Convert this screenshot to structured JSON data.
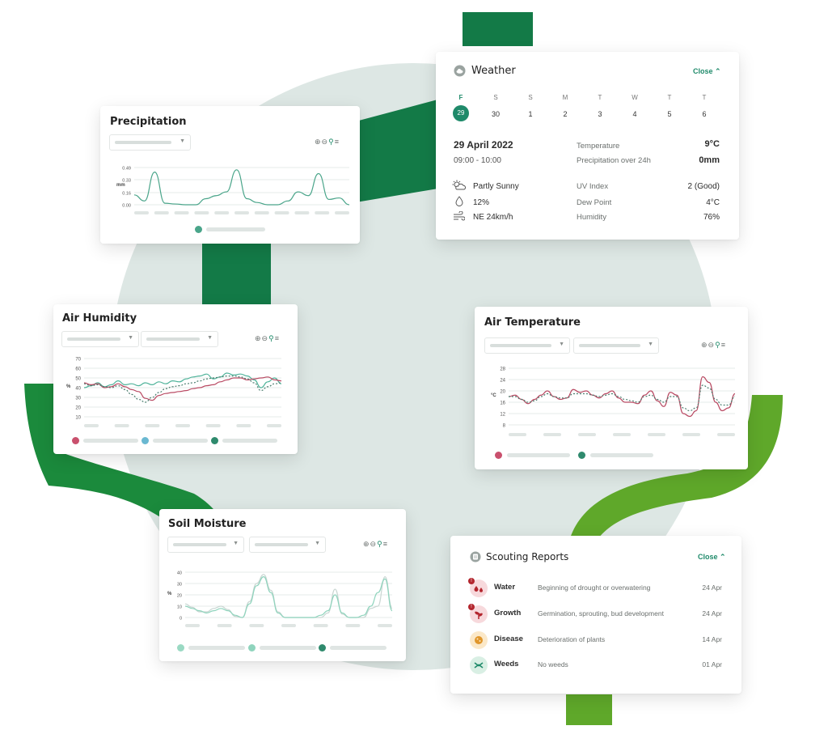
{
  "weather": {
    "title": "Weather",
    "close_label": "Close",
    "days": [
      {
        "letter": "F",
        "num": "29"
      },
      {
        "letter": "S",
        "num": "30"
      },
      {
        "letter": "S",
        "num": "1"
      },
      {
        "letter": "M",
        "num": "2"
      },
      {
        "letter": "T",
        "num": "3"
      },
      {
        "letter": "W",
        "num": "4"
      },
      {
        "letter": "T",
        "num": "5"
      },
      {
        "letter": "T",
        "num": "6"
      }
    ],
    "date": "29 April 2022",
    "time_range": "09:00 - 10:00",
    "temperature_label": "Temperature",
    "temperature_value": "9°C",
    "precip_label": "Precipitation over 24h",
    "precip_value": "0mm",
    "condition": "Partly Sunny",
    "humidity_pct": "12%",
    "wind": "NE 24km/h",
    "uv_label": "UV Index",
    "uv_value": "2 (Good)",
    "dew_label": "Dew Point",
    "dew_value": "4°C",
    "humidity_label": "Humidity",
    "humidity_value": "76%",
    "icons": {
      "header": "cloud-icon",
      "condition": "partly-sunny-icon",
      "humidity": "drop-icon",
      "wind": "wind-icon"
    }
  },
  "precipitation": {
    "title": "Precipitation",
    "ylabel": "mm",
    "yticks": [
      "0.49",
      "0.33",
      "0.16",
      "0.00"
    ],
    "chart_data": {
      "type": "line",
      "title": "Precipitation",
      "ylabel": "mm",
      "ylim": [
        0,
        0.49
      ],
      "series": [
        {
          "color": "#4aa58a",
          "values": [
            0.13,
            0.05,
            0.43,
            0.02,
            0.01,
            0.0,
            0.0,
            0.08,
            0.12,
            0.17,
            0.46,
            0.08,
            0.03,
            0.0,
            0.0,
            0.05,
            0.17,
            0.12,
            0.41,
            0.07,
            0.09,
            0.0
          ]
        }
      ]
    }
  },
  "air_humidity": {
    "title": "Air Humidity",
    "ylabel": "%",
    "yticks": [
      "70",
      "60",
      "50",
      "40",
      "30",
      "20",
      "10"
    ],
    "chart_data": {
      "type": "line",
      "title": "Air Humidity",
      "ylabel": "%",
      "ylim": [
        10,
        70
      ],
      "series": [
        {
          "color": "#4fb39a",
          "values": [
            40,
            42,
            45,
            41,
            43,
            47,
            43,
            44,
            42,
            45,
            43,
            46,
            44,
            47,
            46,
            49,
            51,
            52,
            54,
            49,
            51,
            55,
            53,
            54,
            52,
            48,
            40,
            46,
            50,
            44
          ]
        },
        {
          "color": "#b94a63",
          "values": [
            45,
            43,
            44,
            40,
            41,
            44,
            41,
            38,
            36,
            29,
            27,
            32,
            34,
            35,
            36,
            37,
            39,
            40,
            42,
            43,
            46,
            48,
            50,
            50,
            48,
            49,
            50,
            51,
            48,
            47
          ]
        },
        {
          "color": "#4a7d6e",
          "dashed": true,
          "values": [
            44,
            42,
            43,
            41,
            40,
            42,
            38,
            33,
            28,
            25,
            30,
            35,
            39,
            41,
            42,
            44,
            45,
            47,
            49,
            50,
            51,
            52,
            52,
            51,
            49,
            45,
            37,
            41,
            44,
            45
          ]
        }
      ]
    }
  },
  "air_temperature": {
    "title": "Air Temperature",
    "ylabel": "°C",
    "yticks": [
      "28",
      "24",
      "20",
      "16",
      "12",
      "8"
    ],
    "chart_data": {
      "type": "line",
      "title": "Air Temperature",
      "ylabel": "°C",
      "ylim": [
        8,
        28
      ],
      "series": [
        {
          "color": "#b94a63",
          "values": [
            18,
            18.5,
            17,
            15.5,
            17,
            18.5,
            20,
            18,
            17,
            17.5,
            20.5,
            19.5,
            20,
            18.5,
            17.5,
            19,
            20,
            17.5,
            16,
            16,
            15.5,
            18.5,
            20,
            16.5,
            14.5,
            19.5,
            18.5,
            12,
            11,
            13,
            25,
            23,
            16,
            13,
            14,
            19
          ]
        },
        {
          "color": "#4a7d6e",
          "dashed": true,
          "values": [
            18,
            18,
            17,
            16,
            16.5,
            18,
            19,
            18,
            17.5,
            17.5,
            19,
            19,
            19,
            18.5,
            18,
            18.5,
            19,
            18,
            17,
            16.5,
            16,
            18,
            18.5,
            17,
            16,
            18,
            18,
            14,
            13,
            14,
            22,
            21,
            17,
            15,
            15,
            18
          ]
        }
      ]
    }
  },
  "soil_moisture": {
    "title": "Soil Moisture",
    "ylabel": "%",
    "yticks": [
      "40",
      "30",
      "20",
      "10",
      "0"
    ],
    "chart_data": {
      "type": "line",
      "title": "Soil Moisture",
      "ylabel": "%",
      "ylim": [
        0,
        40
      ],
      "series": [
        {
          "color": "#c9d6d2",
          "values": [
            12,
            9,
            5,
            5,
            8,
            10,
            7,
            1,
            0,
            14,
            30,
            38,
            24,
            5,
            0,
            0,
            0,
            0,
            0,
            0,
            4,
            25,
            3,
            0,
            0,
            0,
            8,
            10,
            36,
            8
          ]
        },
        {
          "color": "#8fd4bd",
          "values": [
            10,
            8,
            6,
            4,
            6,
            8,
            6,
            2,
            0,
            12,
            28,
            36,
            22,
            4,
            0,
            0,
            0,
            0,
            0,
            2,
            6,
            20,
            4,
            0,
            0,
            2,
            10,
            22,
            34,
            6
          ]
        }
      ]
    }
  },
  "scouting": {
    "title": "Scouting Reports",
    "close_label": "Close",
    "rows": [
      {
        "name": "Water",
        "desc": "Beginning of drought or overwatering",
        "date": "24 Apr",
        "badge": "!",
        "icon": "water-drops-icon"
      },
      {
        "name": "Growth",
        "desc": "Germination, sprouting, bud development",
        "date": "24 Apr",
        "badge": "!",
        "icon": "sprout-icon"
      },
      {
        "name": "Disease",
        "desc": "Deterioration of plants",
        "date": "14 Apr",
        "badge": "",
        "icon": "disease-icon"
      },
      {
        "name": "Weeds",
        "desc": "No weeds",
        "date": "01 Apr",
        "badge": "",
        "icon": "weeds-icon"
      }
    ]
  },
  "colors": {
    "brand_green": "#137a47",
    "light_green": "#5fa82a",
    "accent": "#1f8a6a",
    "teal_circle": "#dde7e4"
  }
}
